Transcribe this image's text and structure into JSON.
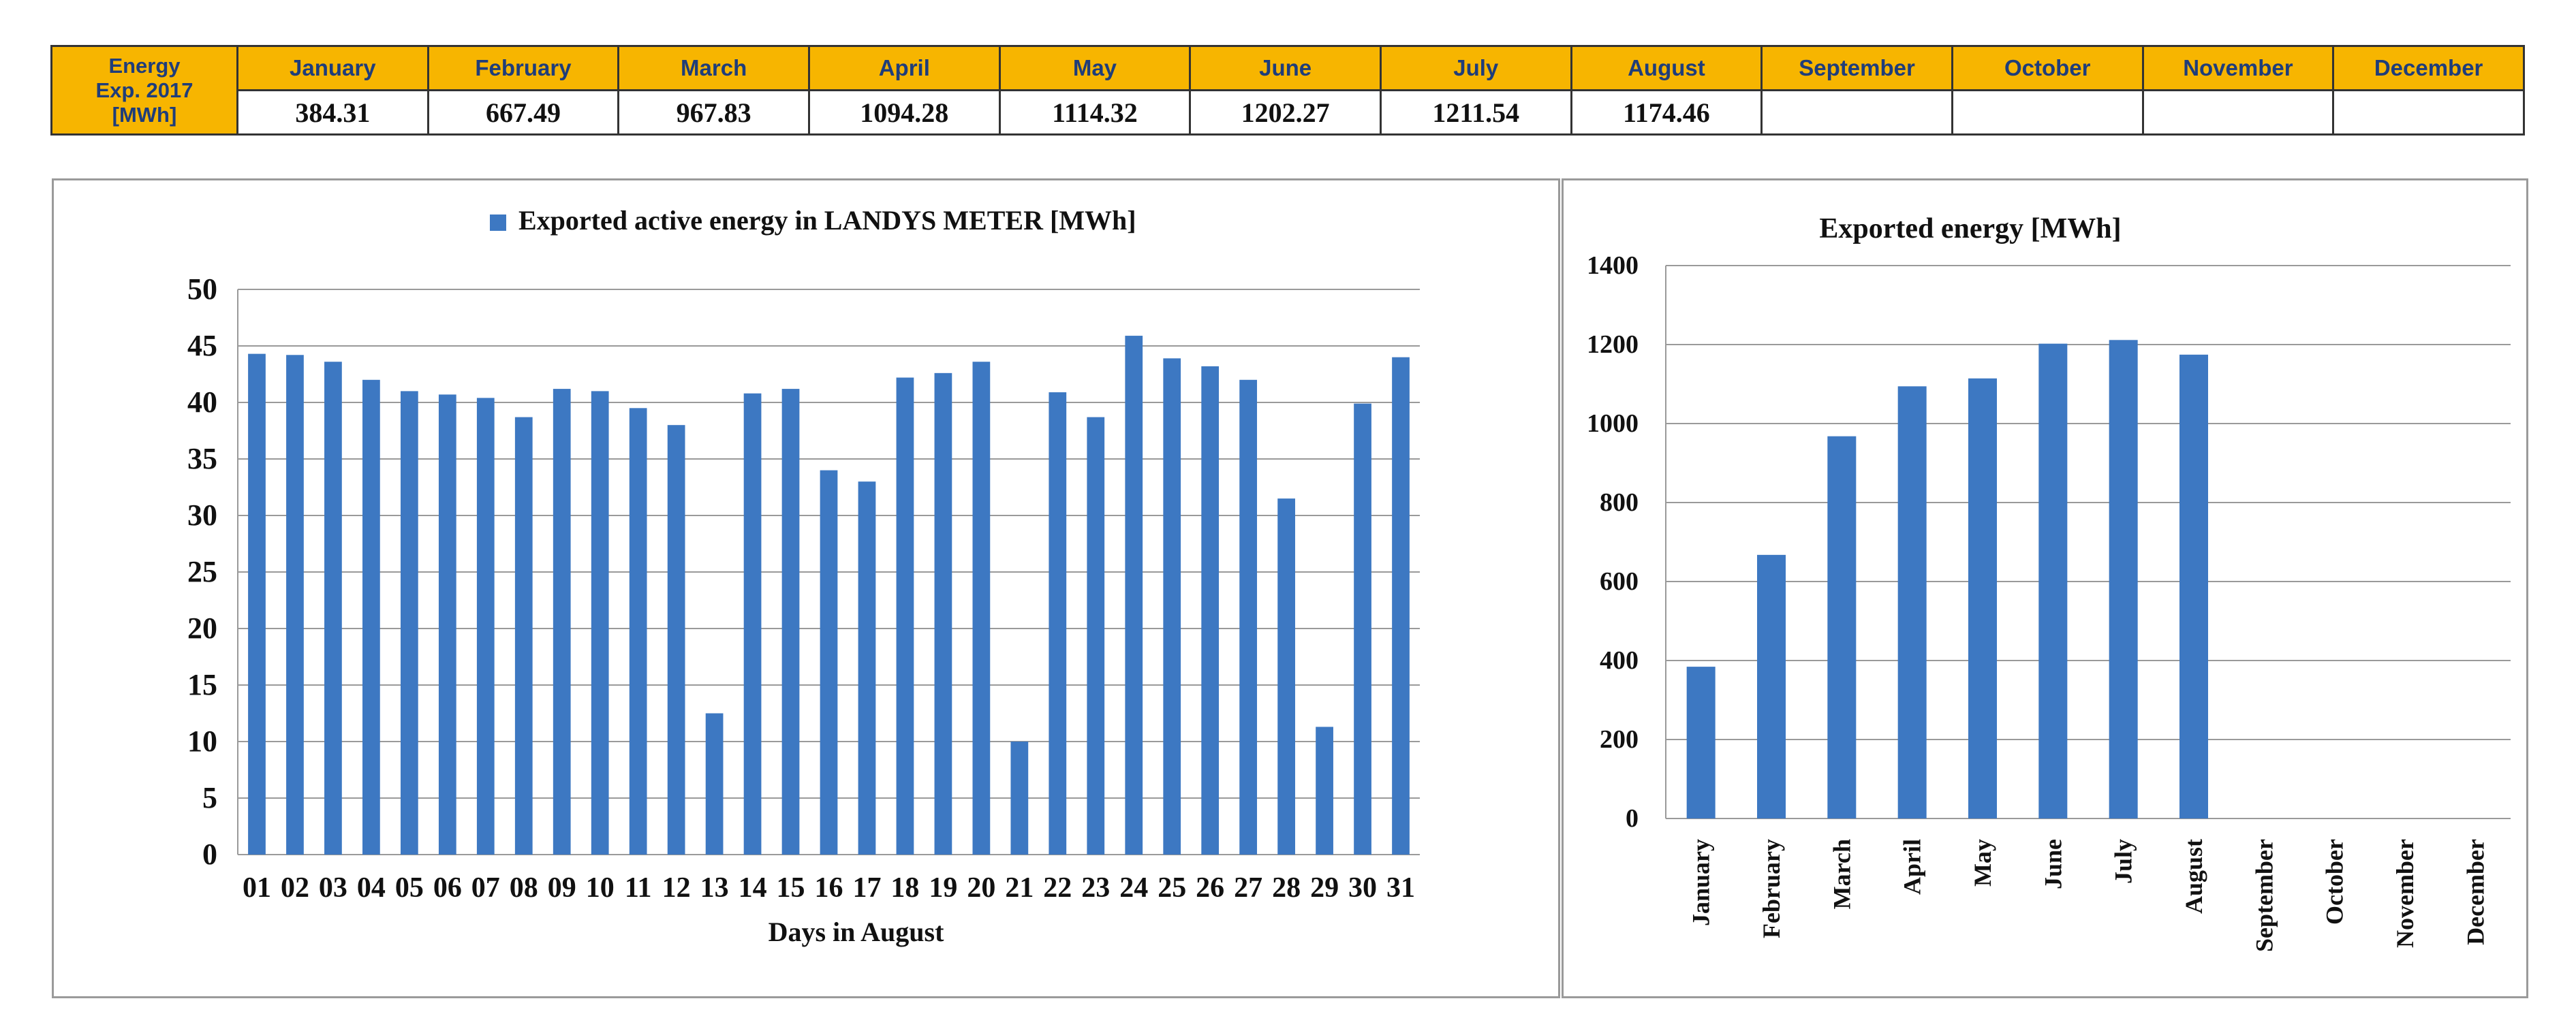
{
  "table": {
    "corner_label": [
      "Energy",
      "Exp. 2017",
      "[MWh]"
    ],
    "months": [
      "January",
      "February",
      "March",
      "April",
      "May",
      "June",
      "July",
      "August",
      "September",
      "October",
      "November",
      "December"
    ],
    "values": [
      "384.31",
      "667.49",
      "967.83",
      "1094.28",
      "1114.32",
      "1202.27",
      "1211.54",
      "1174.46",
      "",
      "",
      "",
      ""
    ]
  },
  "colors": {
    "bar": "#3d78c2",
    "header_bg": "#f7b500",
    "header_text": "#1f3d7a"
  },
  "chart_data": [
    {
      "type": "bar",
      "title": "",
      "legend": {
        "entries": [
          "Exported active energy in LANDYS METER [MWh]"
        ],
        "position": "top"
      },
      "xlabel": "Days in August",
      "ylabel": "",
      "categories": [
        "01",
        "02",
        "03",
        "04",
        "05",
        "06",
        "07",
        "08",
        "09",
        "10",
        "11",
        "12",
        "13",
        "14",
        "15",
        "16",
        "17",
        "18",
        "19",
        "20",
        "21",
        "22",
        "23",
        "24",
        "25",
        "26",
        "27",
        "28",
        "29",
        "30",
        "31"
      ],
      "series": [
        {
          "name": "Exported active energy in LANDYS METER [MWh]",
          "values": [
            44.3,
            44.2,
            43.6,
            42.0,
            41.0,
            40.7,
            40.4,
            38.7,
            41.2,
            41.0,
            39.5,
            38.0,
            12.5,
            40.8,
            41.2,
            34.0,
            33.0,
            42.2,
            42.6,
            43.6,
            10.0,
            40.9,
            38.7,
            45.9,
            43.9,
            43.2,
            42.0,
            31.5,
            11.3,
            39.9,
            44.0
          ]
        }
      ],
      "ylim": [
        0,
        50
      ],
      "yticks": [
        0,
        5,
        10,
        15,
        20,
        25,
        30,
        35,
        40,
        45,
        50
      ],
      "grid": true
    },
    {
      "type": "bar",
      "title": "Exported energy [MWh]",
      "xlabel": "",
      "ylabel": "",
      "categories": [
        "January",
        "February",
        "March",
        "April",
        "May",
        "June",
        "July",
        "August",
        "September",
        "October",
        "November",
        "December"
      ],
      "values": [
        384.31,
        667.49,
        967.83,
        1094.28,
        1114.32,
        1202.27,
        1211.54,
        1174.46,
        null,
        null,
        null,
        null
      ],
      "ylim": [
        0,
        1400
      ],
      "yticks": [
        0,
        200,
        400,
        600,
        800,
        1000,
        1200,
        1400
      ],
      "grid": true
    }
  ]
}
